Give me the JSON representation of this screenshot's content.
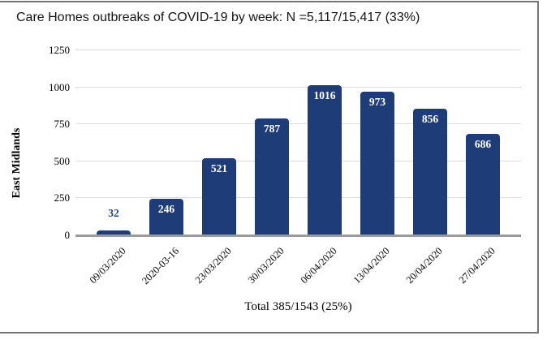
{
  "title": "Care Homes outbreaks of COVID-19 by week: N =5,117/15,417 (33%)",
  "chart_data": {
    "type": "bar",
    "title": "Care Homes outbreaks of COVID-19 by week: N =5,117/15,417 (33%)",
    "categories": [
      "09/03/2020",
      "2020-03-16",
      "23/03/2020",
      "30/03/2020",
      "06/04/2020",
      "13/04/2020",
      "20/04/2020",
      "27/04/2020"
    ],
    "values": [
      32,
      246,
      521,
      787,
      1016,
      973,
      856,
      686
    ],
    "xlabel": "Total 385/1543 (25%)",
    "ylabel": "East Midlands",
    "yticks": [
      0,
      250,
      500,
      750,
      1000,
      1250
    ],
    "ylim": [
      0,
      1250
    ],
    "grid": true,
    "legend": "none",
    "bar_color": "#1E3C78",
    "value_label_color_inside": "#FFFFFF",
    "value_label_color_outside": "#24448A",
    "outside_label_threshold": 100
  }
}
